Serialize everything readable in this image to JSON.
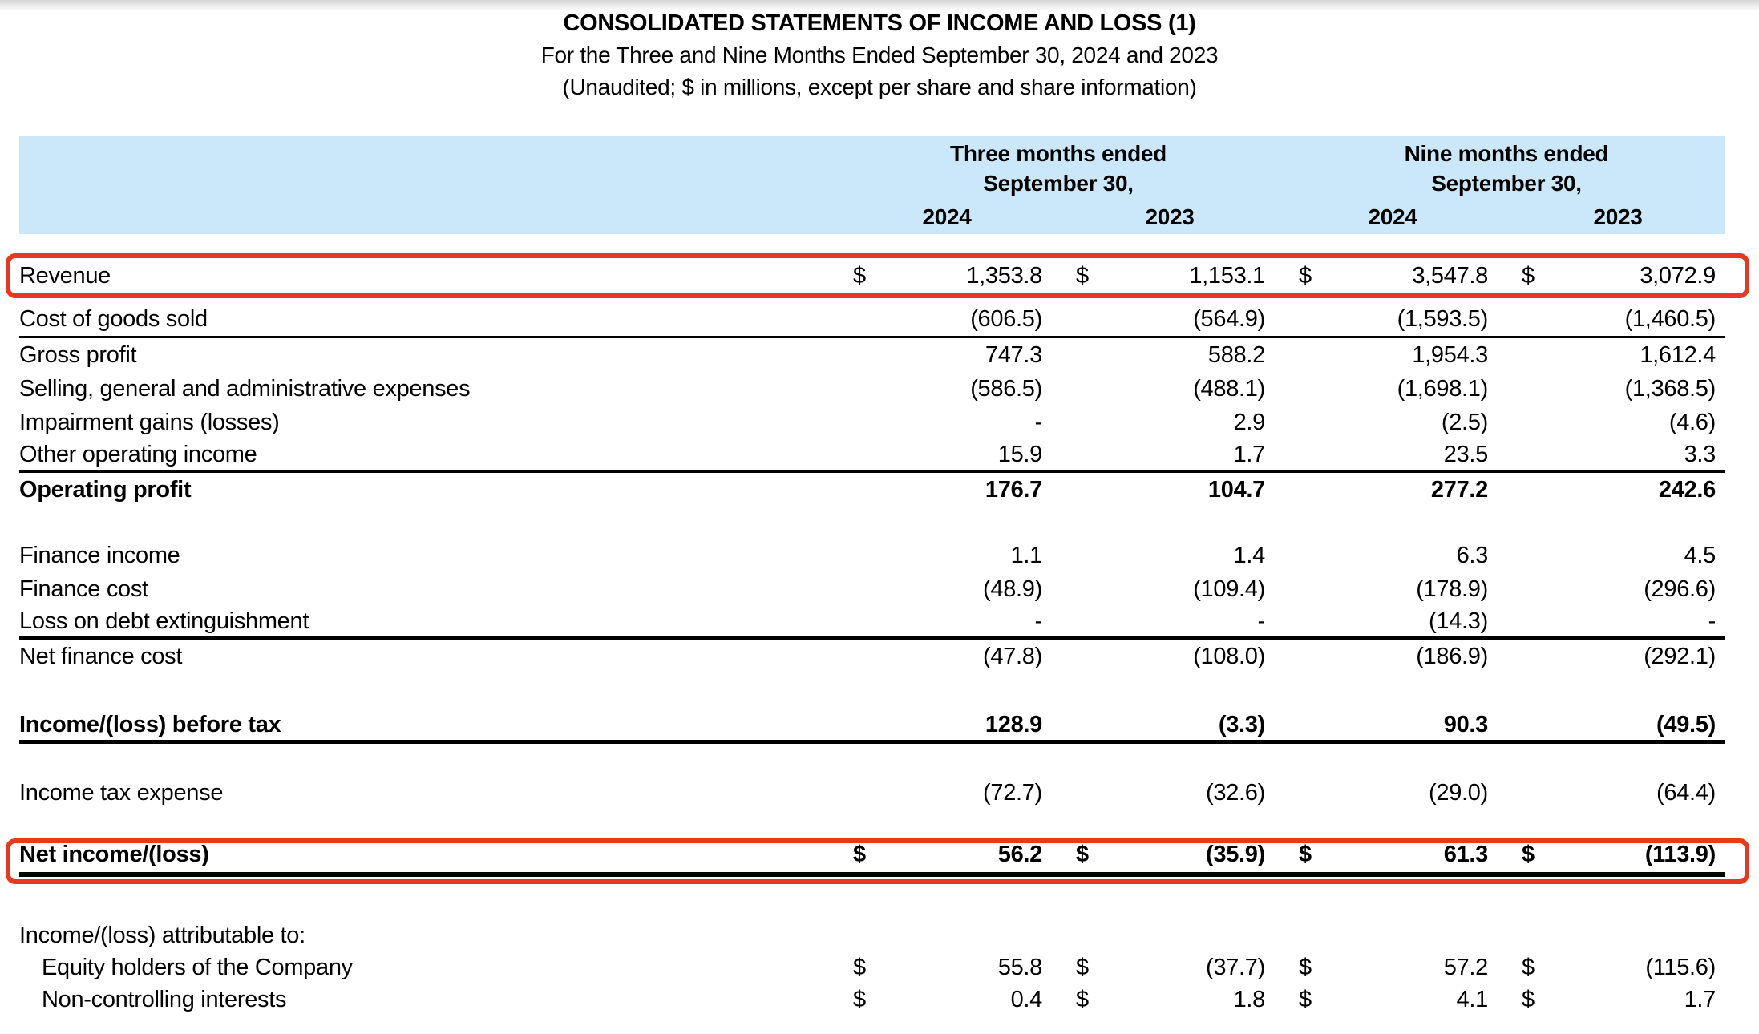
{
  "page": {
    "title": "CONSOLIDATED STATEMENTS OF INCOME AND LOSS (1)",
    "subtitle1": "For the Three and Nine Months Ended September 30, 2024 and 2023",
    "subtitle2": "(Unaudited; $ in millions, except per share and share information)"
  },
  "colors": {
    "header_band": "#CBE8FA",
    "highlight_border": "#E8391F",
    "text": "#000000"
  },
  "table": {
    "currency_symbol": "$",
    "column_groups": [
      {
        "title": "Three months ended",
        "subtitle": "September 30,",
        "years": [
          "2024",
          "2023"
        ]
      },
      {
        "title": "Nine months ended",
        "subtitle": "September 30,",
        "years": [
          "2024",
          "2023"
        ]
      }
    ],
    "rows": [
      {
        "id": "revenue",
        "label": "Revenue",
        "values": [
          "1,353.8",
          "1,153.1",
          "3,547.8",
          "3,072.9"
        ],
        "dollars": true,
        "highlight": true
      },
      {
        "id": "cogs",
        "label": "Cost of goods sold",
        "values": [
          "(606.5)",
          "(564.9)",
          "(1,593.5)",
          "(1,460.5)"
        ],
        "border": "thin"
      },
      {
        "id": "gross_profit",
        "label": "Gross profit",
        "values": [
          "747.3",
          "588.2",
          "1,954.3",
          "1,612.4"
        ]
      },
      {
        "id": "sga",
        "label": "Selling, general and administrative expenses",
        "values": [
          "(586.5)",
          "(488.1)",
          "(1,698.1)",
          "(1,368.5)"
        ]
      },
      {
        "id": "impairment",
        "label": "Impairment gains (losses)",
        "values": [
          "-",
          "2.9",
          "(2.5)",
          "(4.6)"
        ]
      },
      {
        "id": "other_operating_income",
        "label": "Other operating income",
        "values": [
          "15.9",
          "1.7",
          "23.5",
          "3.3"
        ],
        "border": "med"
      },
      {
        "id": "operating_profit",
        "label": "Operating profit",
        "values": [
          "176.7",
          "104.7",
          "277.2",
          "242.6"
        ],
        "bold": true
      },
      {
        "id": "finance_income",
        "label": "Finance income",
        "values": [
          "1.1",
          "1.4",
          "6.3",
          "4.5"
        ]
      },
      {
        "id": "finance_cost",
        "label": "Finance cost",
        "values": [
          "(48.9)",
          "(109.4)",
          "(178.9)",
          "(296.6)"
        ]
      },
      {
        "id": "loss_debt",
        "label": "Loss on debt extinguishment",
        "values": [
          "-",
          "-",
          "(14.3)",
          "-"
        ],
        "border": "med"
      },
      {
        "id": "net_finance_cost",
        "label": "Net finance cost",
        "values": [
          "(47.8)",
          "(108.0)",
          "(186.9)",
          "(292.1)"
        ]
      },
      {
        "id": "income_before_tax",
        "label": "Income/(loss) before tax",
        "values": [
          "128.9",
          "(3.3)",
          "90.3",
          "(49.5)"
        ],
        "bold": true,
        "border": "thick"
      },
      {
        "id": "income_tax",
        "label": "Income tax expense",
        "values": [
          "(72.7)",
          "(32.6)",
          "(29.0)",
          "(64.4)"
        ]
      },
      {
        "id": "net_income",
        "label": "Net income/(loss)",
        "values": [
          "56.2",
          "(35.9)",
          "61.3",
          "(113.9)"
        ],
        "dollars": true,
        "bold": true,
        "highlight": true,
        "border": "double"
      },
      {
        "id": "attributable",
        "label": "Income/(loss) attributable to:",
        "values": [
          "",
          "",
          "",
          ""
        ]
      },
      {
        "id": "equity_holders",
        "label": "Equity holders of the Company",
        "values": [
          "55.8",
          "(37.7)",
          "57.2",
          "(115.6)"
        ],
        "dollars": true,
        "indent": true
      },
      {
        "id": "nci",
        "label": "Non-controlling interests",
        "values": [
          "0.4",
          "1.8",
          "4.1",
          "1.7"
        ],
        "dollars": true,
        "indent": true
      }
    ]
  }
}
